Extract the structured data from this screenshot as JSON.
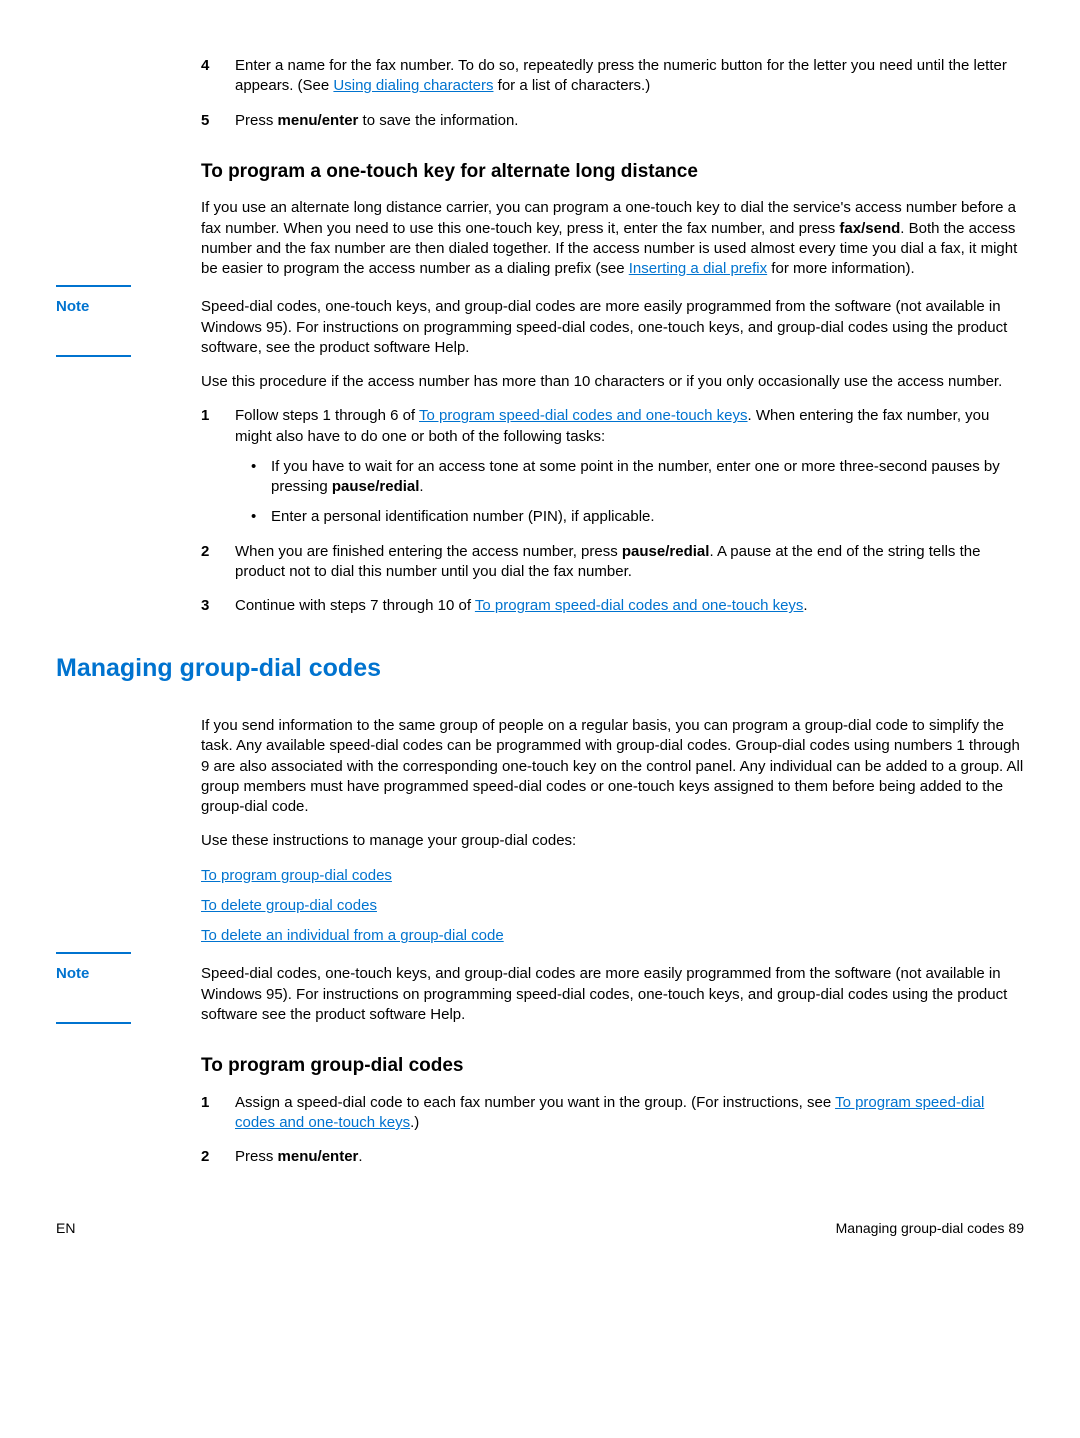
{
  "colors": {
    "link": "#0073cf",
    "heading": "#0073cf",
    "text": "#000000",
    "background": "#ffffff"
  },
  "step4": {
    "num": "4",
    "text_a": "Enter a name for the fax number. To do so, repeatedly press the numeric button for the letter you need until the letter appears. (See ",
    "link": "Using dialing characters",
    "text_b": " for a list of characters.)"
  },
  "step5": {
    "num": "5",
    "text_a": "Press ",
    "bold": "menu/enter",
    "text_b": " to save the information."
  },
  "heading_alt": "To program a one-touch key for alternate long distance",
  "alt_para": {
    "text_a": "If you use an alternate long distance carrier, you can program a one-touch key to dial the service's access number before a fax number. When you need to use this one-touch key, press it, enter the fax number, and press ",
    "bold1": "fax/send",
    "text_b": ". Both the access number and the fax number are then dialed together. If the access number is used almost every time you dial a fax, it might be easier to program the access number as a dialing prefix (see ",
    "link": "Inserting a dial prefix",
    "text_c": " for more information)."
  },
  "note_label": "Note",
  "note1_text": "Speed-dial codes, one-touch keys, and group-dial codes are more easily programmed from the software (not available in Windows 95). For instructions on programming speed-dial codes, one-touch keys, and group-dial codes using the product software, see the product software Help.",
  "use_proc": "Use this procedure if the access number has more than 10 characters or if you only occasionally use the access number.",
  "proc1": {
    "num": "1",
    "text_a": "Follow steps 1 through 6 of ",
    "link": "To program speed-dial codes and one-touch keys",
    "text_b": ". When entering the fax number, you might also have to do one or both of the following tasks:",
    "bullet1_a": "If you have to wait for an access tone at some point in the number, enter one or more three-second pauses by pressing ",
    "bullet1_bold": "pause/redial",
    "bullet1_b": ".",
    "bullet2": "Enter a personal identification number (PIN), if applicable."
  },
  "proc2": {
    "num": "2",
    "text_a": "When you are finished entering the access number, press ",
    "bold": "pause/redial",
    "text_b": ". A pause at the end of the string tells the product not to dial this number until you dial the fax number."
  },
  "proc3": {
    "num": "3",
    "text_a": "Continue with steps 7 through 10 of ",
    "link": "To program speed-dial codes and one-touch keys",
    "text_b": "."
  },
  "section_group": "Managing group-dial codes",
  "group_para": "If you send information to the same group of people on a regular basis, you can program a group-dial code to simplify the task. Any available speed-dial codes can be programmed with group-dial codes. Group-dial codes using numbers 1 through 9 are also associated with the corresponding one-touch key on the control panel. Any individual can be added to a group. All group members must have programmed speed-dial codes or one-touch keys assigned to them before being added to the group-dial code.",
  "group_use": "Use these instructions to manage your group-dial codes:",
  "link_prog": "To program group-dial codes",
  "link_del": "To delete group-dial codes",
  "link_del_ind": "To delete an individual from a group-dial code",
  "note2_text": "Speed-dial codes, one-touch keys, and group-dial codes are more easily programmed from the software (not available in Windows 95). For instructions on programming speed-dial codes, one-touch keys, and group-dial codes using the product software see the product software Help.",
  "heading_prog_group": "To program group-dial codes",
  "group_step1": {
    "num": "1",
    "text_a": "Assign a speed-dial code to each fax number you want in the group. (For instructions, see ",
    "link": "To program speed-dial codes and one-touch keys",
    "text_b": ".)"
  },
  "group_step2": {
    "num": "2",
    "text_a": "Press ",
    "bold": "menu/enter",
    "text_b": "."
  },
  "footer": {
    "left": "EN",
    "right_label": "Managing group-dial codes",
    "right_page": "89"
  }
}
